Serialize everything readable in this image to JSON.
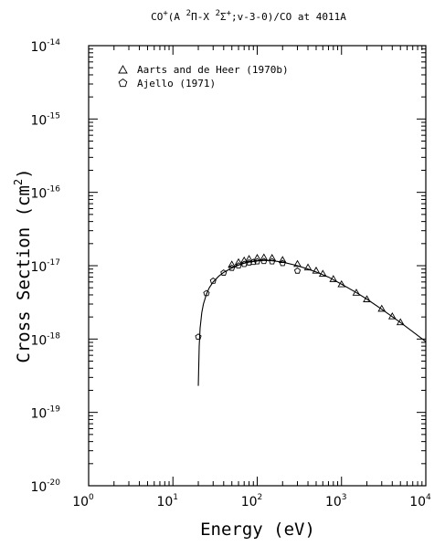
{
  "chart_data": {
    "type": "scatter",
    "title": {
      "prefix": "CO",
      "prefix_sup": "+",
      "part1": "(A ",
      "part2_sup": "2",
      "part2": "Π-X ",
      "part3_sup": "2",
      "part3": "Σ",
      "part3_sup2": "+",
      "part4": ";v-3-0)/CO at 4011A"
    },
    "xlabel": "Energy (eV)",
    "ylabel_main": "Cross Section (cm",
    "ylabel_sup": "2",
    "ylabel_end": ")",
    "x_scale": "log",
    "y_scale": "log",
    "xlim": [
      1,
      10000
    ],
    "ylim": [
      1e-20,
      1e-14
    ],
    "x_ticks": [
      {
        "base": "10",
        "exp": "0",
        "value": 1
      },
      {
        "base": "10",
        "exp": "1",
        "value": 10
      },
      {
        "base": "10",
        "exp": "2",
        "value": 100
      },
      {
        "base": "10",
        "exp": "3",
        "value": 1000
      },
      {
        "base": "10",
        "exp": "4",
        "value": 10000
      }
    ],
    "y_ticks": [
      {
        "base": "10",
        "exp": "-14",
        "value": 1e-14
      },
      {
        "base": "10",
        "exp": "-15",
        "value": 1e-15
      },
      {
        "base": "10",
        "exp": "-16",
        "value": 1e-16
      },
      {
        "base": "10",
        "exp": "-17",
        "value": 1e-17
      },
      {
        "base": "10",
        "exp": "-18",
        "value": 1e-18
      },
      {
        "base": "10",
        "exp": "-19",
        "value": 1e-19
      },
      {
        "base": "10",
        "exp": "-20",
        "value": 1e-20
      }
    ],
    "legend_position": "top-left",
    "series": [
      {
        "name": "Aarts and de Heer (1970b)",
        "marker": "triangle",
        "points": [
          [
            50,
            1.04e-17
          ],
          [
            60,
            1.12e-17
          ],
          [
            70,
            1.18e-17
          ],
          [
            80,
            1.24e-17
          ],
          [
            100,
            1.28e-17
          ],
          [
            120,
            1.3e-17
          ],
          [
            150,
            1.28e-17
          ],
          [
            200,
            1.2e-17
          ],
          [
            300,
            1.06e-17
          ],
          [
            400,
            9.5e-18
          ],
          [
            500,
            8.6e-18
          ],
          [
            600,
            7.8e-18
          ],
          [
            800,
            6.6e-18
          ],
          [
            1000,
            5.6e-18
          ],
          [
            1500,
            4.3e-18
          ],
          [
            2000,
            3.5e-18
          ],
          [
            3000,
            2.6e-18
          ],
          [
            4000,
            2.05e-18
          ],
          [
            5000,
            1.7e-18
          ]
        ]
      },
      {
        "name": "Ajello (1971)",
        "marker": "pentagon",
        "points": [
          [
            20,
            1.07e-18
          ],
          [
            25,
            4.2e-18
          ],
          [
            30,
            6.2e-18
          ],
          [
            40,
            8e-18
          ],
          [
            50,
            9.3e-18
          ],
          [
            60,
            1e-17
          ],
          [
            70,
            1.05e-17
          ],
          [
            80,
            1.1e-17
          ],
          [
            90,
            1.12e-17
          ],
          [
            100,
            1.14e-17
          ],
          [
            120,
            1.15e-17
          ],
          [
            150,
            1.14e-17
          ],
          [
            200,
            1.08e-17
          ],
          [
            300,
            8.5e-18
          ]
        ]
      }
    ],
    "fit_curve": [
      [
        20,
        2.3e-19
      ],
      [
        20.5,
        8e-19
      ],
      [
        21,
        1.4e-18
      ],
      [
        22,
        2.3e-18
      ],
      [
        23,
        3e-18
      ],
      [
        25,
        4.1e-18
      ],
      [
        27,
        5e-18
      ],
      [
        30,
        6e-18
      ],
      [
        35,
        7.2e-18
      ],
      [
        40,
        8.1e-18
      ],
      [
        50,
        9.3e-18
      ],
      [
        60,
        1.02e-17
      ],
      [
        70,
        1.08e-17
      ],
      [
        80,
        1.12e-17
      ],
      [
        100,
        1.16e-17
      ],
      [
        120,
        1.18e-17
      ],
      [
        150,
        1.17e-17
      ],
      [
        200,
        1.12e-17
      ],
      [
        300,
        1e-17
      ],
      [
        400,
        9e-18
      ],
      [
        500,
        8.2e-18
      ],
      [
        700,
        7e-18
      ],
      [
        1000,
        5.6e-18
      ],
      [
        1500,
        4.3e-18
      ],
      [
        2000,
        3.5e-18
      ],
      [
        3000,
        2.55e-18
      ],
      [
        5000,
        1.68e-18
      ],
      [
        7000,
        1.26e-18
      ],
      [
        10000,
        9.2e-19
      ]
    ]
  }
}
